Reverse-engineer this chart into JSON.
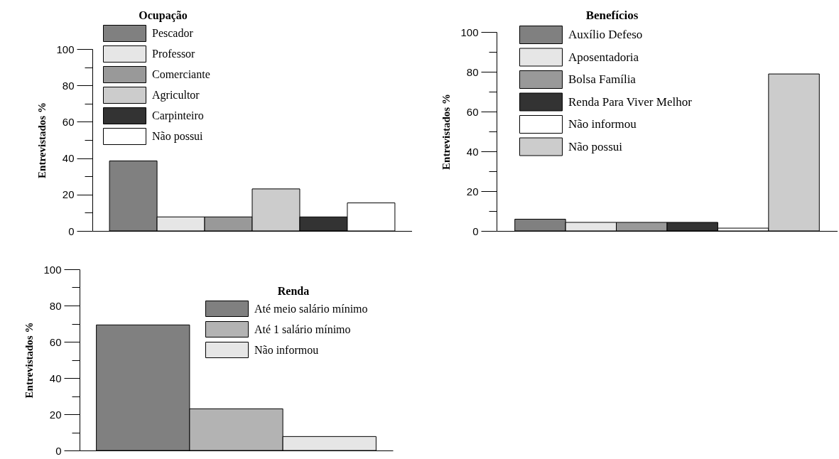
{
  "chart_data": [
    {
      "type": "bar",
      "legend_title": "Ocupação",
      "ylabel": "Entrevistados %",
      "categories": [
        null
      ],
      "ylim": [
        0,
        100
      ],
      "yticks": [
        0,
        {
          "value": 10,
          "label": null
        },
        20,
        {
          "value": 30,
          "label": null
        },
        40,
        {
          "value": 50,
          "label": null
        },
        60,
        {
          "value": 70,
          "label": null
        },
        80,
        {
          "value": 90,
          "label": null
        },
        100
      ],
      "tick_labels": "y",
      "legend": "top left",
      "series": [
        {
          "name": "Pescador",
          "color": "#808080",
          "values": [
            38.5
          ]
        },
        {
          "name": "Professor",
          "color": "#e6e6e6",
          "values": [
            7.7
          ]
        },
        {
          "name": "Comerciante",
          "color": "#999999",
          "values": [
            7.7
          ]
        },
        {
          "name": "Agricultor",
          "color": "#cccccc",
          "values": [
            23.1
          ]
        },
        {
          "name": "Carpinteiro",
          "color": "#333333",
          "values": [
            7.7
          ]
        },
        {
          "name": "Não possui",
          "color": "#ffffff",
          "values": [
            15.4
          ]
        }
      ]
    },
    {
      "type": "bar",
      "legend_title": "Benefícios",
      "ylabel": "Entrevistados %",
      "categories": [
        null
      ],
      "ylim": [
        0,
        100
      ],
      "yticks": [
        0,
        {
          "value": 10,
          "label": null
        },
        20,
        {
          "value": 30,
          "label": null
        },
        40,
        {
          "value": 50,
          "label": null
        },
        60,
        {
          "value": 70,
          "label": null
        },
        80,
        {
          "value": 90,
          "label": null
        },
        100
      ],
      "tick_labels": "y",
      "legend": "top left",
      "series": [
        {
          "name": "Auxílio Defeso",
          "color": "#808080",
          "values": [
            5.9
          ]
        },
        {
          "name": "Aposentadoria",
          "color": "#e6e6e6",
          "values": [
            4.3
          ]
        },
        {
          "name": "Bolsa Família",
          "color": "#999999",
          "values": [
            4.3
          ]
        },
        {
          "name": "Renda Para Viver Melhor",
          "color": "#333333",
          "values": [
            4.3
          ]
        },
        {
          "name": "Não informou",
          "color": "#ffffff",
          "values": [
            1.4
          ]
        },
        {
          "name": "Não possui",
          "color": "#cccccc",
          "values": [
            78.9
          ]
        }
      ]
    },
    {
      "type": "bar",
      "legend_title": "Renda",
      "ylabel": "Entrevistados %",
      "categories": [
        null
      ],
      "ylim": [
        0,
        100
      ],
      "yticks": [
        0,
        {
          "value": 10,
          "label": null
        },
        20,
        {
          "value": 30,
          "label": null
        },
        40,
        {
          "value": 50,
          "label": null
        },
        60,
        {
          "value": 70,
          "label": null
        },
        80,
        {
          "value": 90,
          "label": null
        },
        100
      ],
      "tick_labels": "y",
      "legend": "top right",
      "series": [
        {
          "name": "Até meio salário mínimo",
          "color": "#808080",
          "values": [
            69.3
          ]
        },
        {
          "name": "Até 1 salário mínimo",
          "color": "#b3b3b3",
          "values": [
            23.0
          ]
        },
        {
          "name": "Não informou",
          "color": "#e6e6e6",
          "values": [
            7.7
          ]
        }
      ]
    }
  ]
}
